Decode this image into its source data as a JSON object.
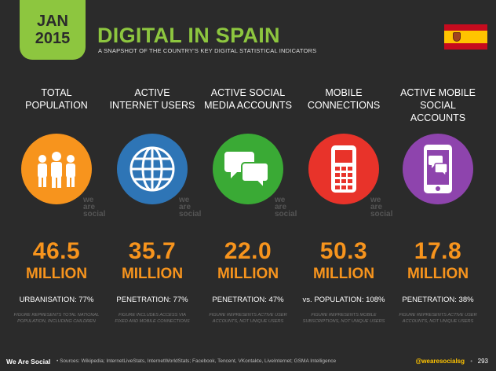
{
  "header": {
    "month": "JAN",
    "year": "2015",
    "title": "DIGITAL IN SPAIN",
    "subtitle": "A SNAPSHOT OF THE COUNTRY'S KEY DIGITAL STATISTICAL INDICATORS"
  },
  "brand_tag": [
    "we",
    "are",
    "social"
  ],
  "stats": [
    {
      "heading": [
        "TOTAL",
        "POPULATION"
      ],
      "value": "46.5",
      "unit": "MILLION",
      "stat": "URBANISATION: 77%",
      "note": [
        "FIGURE REPRESENTS TOTAL NATIONAL",
        "POPULATION, INCLUDING CHILDREN"
      ],
      "color": "#f7941d",
      "icon": "people-icon"
    },
    {
      "heading": [
        "ACTIVE",
        "INTERNET USERS"
      ],
      "value": "35.7",
      "unit": "MILLION",
      "stat": "PENETRATION: 77%",
      "note": [
        "FIGURE INCLUDES ACCESS VIA",
        "FIXED AND MOBILE CONNECTIONS"
      ],
      "color": "#2e75b6",
      "icon": "globe-icon"
    },
    {
      "heading": [
        "ACTIVE SOCIAL",
        "MEDIA ACCOUNTS"
      ],
      "value": "22.0",
      "unit": "MILLION",
      "stat": "PENETRATION: 47%",
      "note": [
        "FIGURE REPRESENTS ACTIVE USER",
        "ACCOUNTS, NOT UNIQUE USERS"
      ],
      "color": "#3aaa35",
      "icon": "speech-bubbles-icon"
    },
    {
      "heading": [
        "MOBILE",
        "CONNECTIONS"
      ],
      "value": "50.3",
      "unit": "MILLION",
      "stat": "vs. POPULATION: 108%",
      "note": [
        "FIGURE REPRESENTS MOBILE",
        "SUBSCRIPTIONS, NOT UNIQUE USERS"
      ],
      "color": "#e8332a",
      "icon": "mobile-phone-icon"
    },
    {
      "heading": [
        "ACTIVE MOBILE",
        "SOCIAL ACCOUNTS"
      ],
      "value": "17.8",
      "unit": "MILLION",
      "stat": "PENETRATION: 38%",
      "note": [
        "FIGURE REPRESENTS ACTIVE USER",
        "ACCOUNTS, NOT UNIQUE USERS"
      ],
      "color": "#8e44ad",
      "icon": "smartphone-social-icon"
    }
  ],
  "footer": {
    "brand": "We Are Social",
    "sources": "•  Sources: Wikipedia; InternetLiveStats, InternetWorldStats; Facebook, Tencent, VKontakte, LiveInternet; GSMA Intelligence",
    "handle": "@wearesocialsg",
    "separator": "•",
    "page": "293"
  },
  "colors": {
    "accent_green": "#8dc63f",
    "number_orange": "#f7941d",
    "background": "#2b2b2b"
  }
}
